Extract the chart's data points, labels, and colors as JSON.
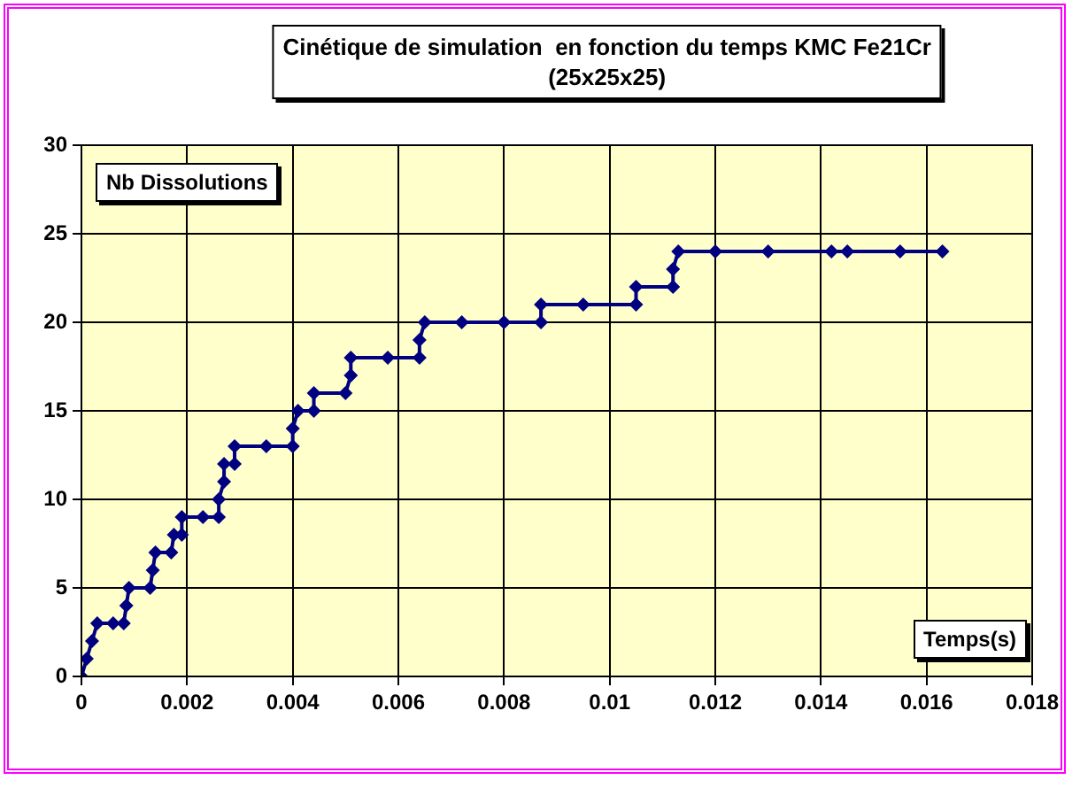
{
  "chart_data": {
    "type": "line",
    "title": "Cinétique de simulation  en fonction du temps KMC Fe21Cr\n(25x25x25)",
    "xlabel": "Temps(s)",
    "ylabel": "Nb Dissolutions",
    "series": [
      {
        "color": "#000080",
        "x": [
          0,
          0.0001,
          0.0002,
          0.0003,
          0.0006,
          0.0008,
          0.00085,
          0.0009,
          0.0013,
          0.00135,
          0.0014,
          0.0017,
          0.00175,
          0.0019,
          0.0019,
          0.0023,
          0.0026,
          0.0026,
          0.0027,
          0.0027,
          0.0029,
          0.0029,
          0.0035,
          0.004,
          0.004,
          0.0041,
          0.0044,
          0.0044,
          0.005,
          0.0051,
          0.0051,
          0.0058,
          0.0064,
          0.0064,
          0.0065,
          0.0072,
          0.008,
          0.0087,
          0.0087,
          0.0095,
          0.0105,
          0.0105,
          0.0112,
          0.0112,
          0.0113,
          0.012,
          0.013,
          0.0142,
          0.0145,
          0.0155,
          0.0163
        ],
        "values": [
          0,
          1,
          2,
          3,
          3,
          3,
          4,
          5,
          5,
          6,
          7,
          7,
          8,
          8,
          9,
          9,
          9,
          10,
          11,
          12,
          12,
          13,
          13,
          13,
          14,
          15,
          15,
          16,
          16,
          17,
          18,
          18,
          18,
          19,
          20,
          20,
          20,
          20,
          21,
          21,
          21,
          22,
          22,
          23,
          24,
          24,
          24,
          24,
          24,
          24,
          24
        ]
      }
    ],
    "xlim": [
      0,
      0.018
    ],
    "xticks": [
      0,
      0.002,
      0.004,
      0.006,
      0.008,
      0.01,
      0.012,
      0.014,
      0.016,
      0.018
    ],
    "ylim": [
      0,
      30
    ],
    "yticks": [
      0,
      5,
      10,
      15,
      20,
      25,
      30
    ],
    "grid": true,
    "legend": false,
    "marker": "diamond",
    "line_style": "solid"
  }
}
